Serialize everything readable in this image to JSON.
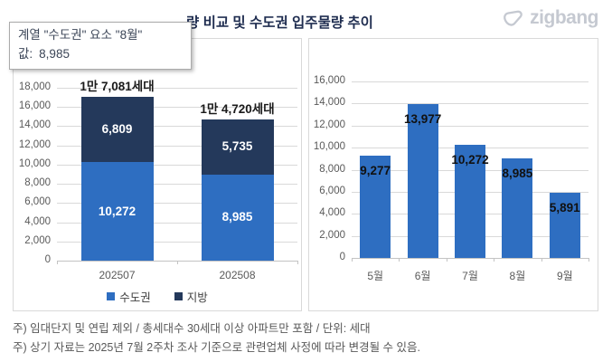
{
  "header": {
    "title_visible": "량 비교 및 수도권 입주물량 추이",
    "logo_text": "zigbang"
  },
  "tooltip": {
    "line1": "계열 \"수도권\" 요소 \"8월\"",
    "value_label": "값:",
    "value": "8,985"
  },
  "footnotes": [
    "주) 임대단지 및 연립 제외 / 총세대수 30세대 이상 아파트만 포함 / 단위: 세대",
    "주) 상기 자료는 2025년 7월 2주차 조사 기준으로 관련업체 사정에 따라 변경될 수 있음."
  ],
  "colors": {
    "capital_blue": "#2e6ec1",
    "regional_navy": "#24395b",
    "gridline": "#d9d9d9",
    "axis_text": "#595959",
    "title_text": "#1f2d50",
    "logo_gray": "#c5c9d1"
  },
  "chart_data": [
    {
      "type": "bar",
      "subtype": "stacked-column",
      "categories": [
        "202507",
        "202508"
      ],
      "series": [
        {
          "name": "수도권",
          "values": [
            10272,
            8985
          ],
          "color": "#2e6ec1",
          "label_color": "#ffffff"
        },
        {
          "name": "지방",
          "values": [
            6809,
            5735
          ],
          "color": "#24395b",
          "label_color": "#ffffff"
        }
      ],
      "segment_labels": [
        [
          "10,272",
          "8,985"
        ],
        [
          "6,809",
          "5,735"
        ]
      ],
      "total_labels": [
        "1만 7,081세대",
        "1만 4,720세대"
      ],
      "ylim": [
        0,
        18000
      ],
      "ytick_step": 2000,
      "grid": true,
      "legend_position": "bottom"
    },
    {
      "type": "bar",
      "categories": [
        "5월",
        "6월",
        "7월",
        "8월",
        "9월"
      ],
      "values": [
        9277,
        13977,
        10272,
        8985,
        5891
      ],
      "data_labels": [
        "9,277",
        "13,977",
        "10,272",
        "8,985",
        "5,891"
      ],
      "bar_color": "#2e6ec1",
      "label_color": "#111111",
      "ylim": [
        0,
        16000
      ],
      "ytick_step": 2000,
      "grid": true,
      "legend_position": "none"
    }
  ]
}
